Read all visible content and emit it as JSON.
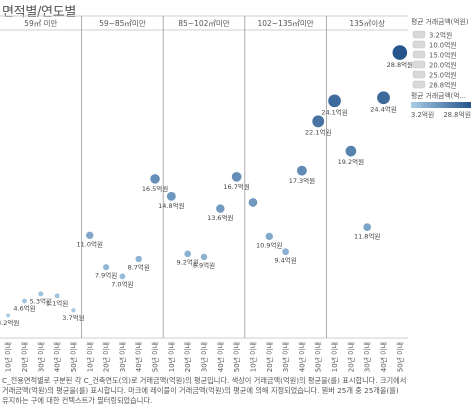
{
  "title": "면적별/연도별",
  "footer_lines": [
    "C_전용면적별로 구분된 각 C_건축연도(의)로 거래금액(억원)의 평균입니다. 색상이 거래금액(억원)의 평균을(를) 표시합니다. 크기에서",
    "거래금액(억원)의 평균을(를) 표시합니다. 마크에 레이블이 거래금액(억원)의 평균에 의해 지정되었습니다. 뭔버 25개 중 25개을(를)",
    "유지하는 구에 대한 컨텍스트가 필터링되었습니다."
  ],
  "legend": {
    "size_title": "평균 거래금액(억원)",
    "size_items": [
      "3.2억원",
      "10.0억원",
      "15.0억원",
      "20.0억원",
      "25.0억원",
      "28.8억원"
    ],
    "color_title": "평균 거래금액(억...",
    "color_min": "3.2억원",
    "color_max": "28.8억원",
    "color_low": "#a9cde6",
    "color_high": "#26558c"
  },
  "chart_data": {
    "type": "scatter",
    "title": "면적별/연도별",
    "panels": [
      "59㎡ 미만",
      "59~85㎡미만",
      "85~102㎡미만",
      "102~135㎡미만",
      "135㎡이상"
    ],
    "categories": [
      "10년",
      "20년",
      "30년",
      "40년",
      "50년"
    ],
    "category_suffix": "이내",
    "unit": "억원",
    "series": [
      {
        "panel": "59㎡ 미만",
        "values": [
          3.2,
          4.6,
          5.3,
          5.1,
          3.7
        ],
        "labels": [
          "3.2억원",
          "4.6억원",
          "5.3억원",
          "5.1억원",
          "3.7억원"
        ]
      },
      {
        "panel": "59~85㎡미만",
        "values": [
          11.0,
          7.9,
          7.0,
          8.7,
          16.5
        ],
        "labels": [
          "11.0억원",
          "7.9억원",
          "7.0억원",
          "8.7억원",
          "16.5억원"
        ]
      },
      {
        "panel": "85~102㎡미만",
        "values": [
          14.8,
          9.2,
          8.9,
          13.6,
          16.7
        ],
        "labels": [
          "14.8억원",
          "9.2억원",
          "8.9억원",
          "13.6억원",
          "16.7억원"
        ]
      },
      {
        "panel": "102~135㎡미만",
        "values": [
          14.2,
          10.9,
          9.4,
          17.3,
          22.1
        ],
        "labels": [
          "",
          "10.9억원",
          "9.4억원",
          "17.3억원",
          "22.1억원"
        ]
      },
      {
        "panel": "135㎡이상",
        "values": [
          24.1,
          19.2,
          11.8,
          24.4,
          28.8
        ],
        "labels": [
          "24.1억원",
          "19.2억원",
          "11.8억원",
          "24.4억원",
          "28.8억원"
        ]
      }
    ],
    "ylim": [
      1.0,
      31.0
    ],
    "grid": false,
    "legend_position": "right"
  }
}
